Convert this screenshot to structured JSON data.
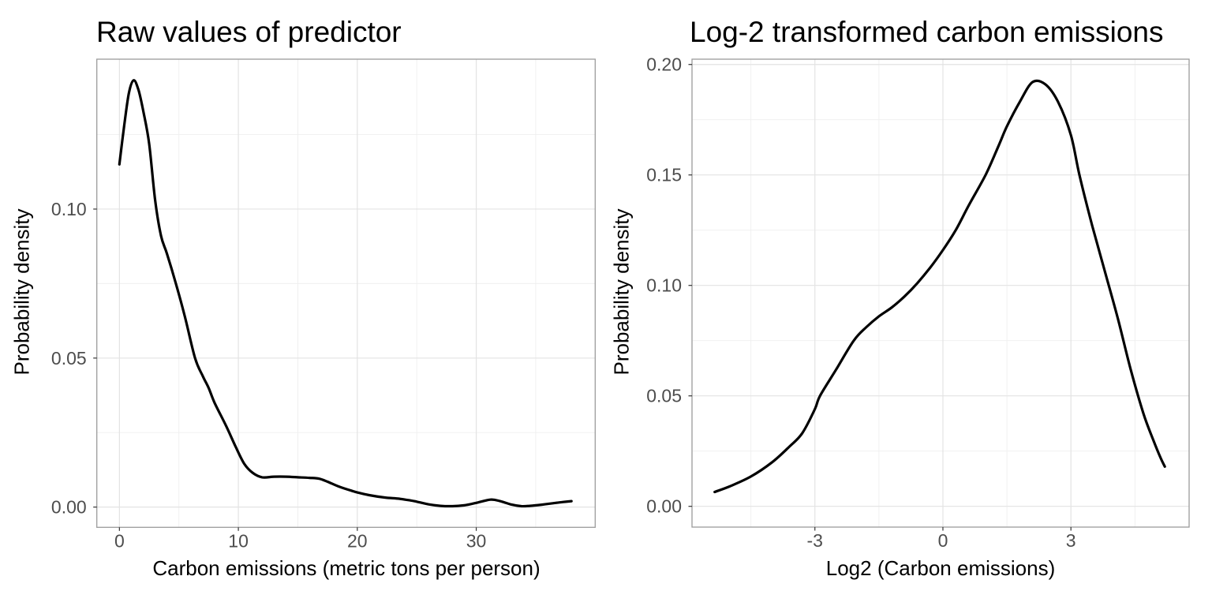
{
  "figure": {
    "background": "#ffffff",
    "style": {
      "curve_color": "#000000",
      "panel_background": "#ffffff",
      "panel_border_color": "#9b9b9b",
      "grid_major_color": "#e3e3e3",
      "grid_minor_color": "#efefef",
      "tick_mark_color": "#333333",
      "tick_label_color": "#4d4d4d",
      "title_color": "#000000"
    }
  },
  "chart_data": [
    {
      "type": "line",
      "subtype": "density",
      "title": "Raw values of predictor",
      "xlabel": "Carbon emissions (metric tons per person)",
      "ylabel": "Probability density",
      "legend": "none",
      "grid": true,
      "xlim": [
        -1.9,
        40.0
      ],
      "ylim": [
        -0.0068,
        0.1503
      ],
      "x_ticks": [
        {
          "v": 0,
          "label": "0"
        },
        {
          "v": 10,
          "label": "10"
        },
        {
          "v": 20,
          "label": "20"
        },
        {
          "v": 30,
          "label": "30"
        }
      ],
      "x_minor": [
        5,
        15,
        25,
        35
      ],
      "y_ticks": [
        {
          "v": 0,
          "label": "0.00"
        },
        {
          "v": 0.05,
          "label": "0.05"
        },
        {
          "v": 0.1,
          "label": "0.10"
        }
      ],
      "y_minor": [
        0.025,
        0.075,
        0.125
      ],
      "series": [
        {
          "name": "density",
          "x": [
            0,
            0.4,
            0.8,
            1.2,
            1.6,
            2,
            2.5,
            3,
            3.5,
            4,
            4.75,
            5.5,
            6.36,
            7,
            7.5,
            8,
            9,
            9.8,
            10.5,
            11.2,
            12,
            13,
            14,
            15,
            16,
            16.8,
            17.5,
            18.5,
            19.5,
            20,
            21,
            22.3,
            23.5,
            24.5,
            25,
            26,
            27,
            28,
            29,
            30,
            31.2,
            32,
            33,
            33.8,
            34.5,
            35.5,
            36.5,
            37.3,
            38
          ],
          "y": [
            0.115,
            0.128,
            0.139,
            0.1432,
            0.14,
            0.133,
            0.122,
            0.103,
            0.091,
            0.085,
            0.075,
            0.064,
            0.05,
            0.044,
            0.04,
            0.035,
            0.027,
            0.02,
            0.0145,
            0.0115,
            0.01,
            0.0102,
            0.0102,
            0.01,
            0.0098,
            0.0095,
            0.0085,
            0.0068,
            0.0055,
            0.0049,
            0.004,
            0.0032,
            0.0028,
            0.0022,
            0.0018,
            0.0009,
            0.0004,
            0.0003,
            0.0006,
            0.0014,
            0.0025,
            0.002,
            0.0008,
            0.0003,
            0.0004,
            0.0008,
            0.0013,
            0.0017,
            0.002
          ]
        }
      ]
    },
    {
      "type": "line",
      "subtype": "density",
      "title": "Log-2 transformed carbon emissions",
      "xlabel": "Log2 (Carbon emissions)",
      "ylabel": "Probability density",
      "legend": "none",
      "grid": true,
      "xlim": [
        -5.88,
        5.77
      ],
      "ylim": [
        -0.0094,
        0.2024
      ],
      "x_ticks": [
        {
          "v": -3,
          "label": "-3"
        },
        {
          "v": 0,
          "label": "0"
        },
        {
          "v": 3,
          "label": "3"
        }
      ],
      "x_minor": [
        -4.5,
        -1.5,
        1.5,
        4.5
      ],
      "y_ticks": [
        {
          "v": 0,
          "label": "0.00"
        },
        {
          "v": 0.05,
          "label": "0.05"
        },
        {
          "v": 0.1,
          "label": "0.10"
        },
        {
          "v": 0.15,
          "label": "0.15"
        },
        {
          "v": 0.2,
          "label": "0.20"
        }
      ],
      "y_minor": [
        0.025,
        0.075,
        0.125,
        0.175
      ],
      "series": [
        {
          "name": "density",
          "x": [
            -5.35,
            -5,
            -4.5,
            -4,
            -3.6,
            -3.3,
            -3,
            -2.88,
            -2.5,
            -2.09,
            -1.8,
            -1.5,
            -1.2,
            -0.9,
            -0.6,
            -0.3,
            0,
            0.3,
            0.6,
            1,
            1.3,
            1.5,
            1.8,
            2.1,
            2.4,
            2.7,
            3,
            3.2,
            3.5,
            3.8,
            4.1,
            4.4,
            4.7,
            4.93,
            5.1,
            5.2
          ],
          "y": [
            0.0065,
            0.009,
            0.0135,
            0.02,
            0.027,
            0.033,
            0.044,
            0.05,
            0.062,
            0.075,
            0.081,
            0.086,
            0.09,
            0.095,
            0.101,
            0.108,
            0.116,
            0.125,
            0.136,
            0.15,
            0.163,
            0.172,
            0.183,
            0.192,
            0.191,
            0.183,
            0.168,
            0.15,
            0.127,
            0.106,
            0.085,
            0.062,
            0.042,
            0.03,
            0.022,
            0.018
          ]
        }
      ]
    }
  ]
}
